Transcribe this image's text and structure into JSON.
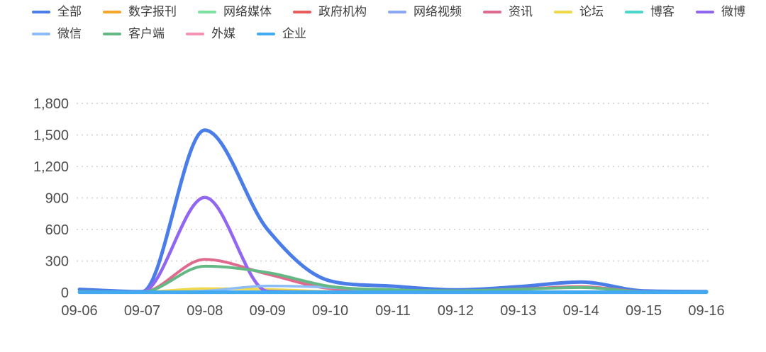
{
  "chart_data": {
    "type": "line",
    "title": "",
    "xlabel": "",
    "ylabel": "",
    "smooth": true,
    "grid": "dotted-horizontal",
    "legend_position": "top-left",
    "ylim": [
      0,
      1800
    ],
    "categories": [
      "09-06",
      "09-07",
      "09-08",
      "09-09",
      "09-10",
      "09-11",
      "09-12",
      "09-13",
      "09-14",
      "09-15",
      "09-16"
    ],
    "y_ticks": [
      {
        "value": 0,
        "label": "0"
      },
      {
        "value": 300,
        "label": "300"
      },
      {
        "value": 600,
        "label": "600"
      },
      {
        "value": 900,
        "label": "900"
      },
      {
        "value": 1200,
        "label": "1,200"
      },
      {
        "value": 1500,
        "label": "1,500"
      },
      {
        "value": 1800,
        "label": "1,800"
      }
    ],
    "series": [
      {
        "id": "all",
        "name": "全部",
        "color": "#4a7de8",
        "width": 5,
        "values": [
          30,
          8,
          1545,
          600,
          110,
          60,
          25,
          55,
          100,
          15,
          8
        ]
      },
      {
        "id": "digital-newspaper",
        "name": "数字报刊",
        "color": "#f5a62b",
        "width": 3,
        "values": [
          2,
          2,
          5,
          3,
          2,
          2,
          2,
          2,
          2,
          2,
          2
        ]
      },
      {
        "id": "online-media",
        "name": "网络媒体",
        "color": "#7ce0a0",
        "width": 3,
        "values": [
          3,
          2,
          8,
          5,
          3,
          2,
          2,
          2,
          3,
          2,
          2
        ]
      },
      {
        "id": "government",
        "name": "政府机构",
        "color": "#e85c5c",
        "width": 3,
        "values": [
          2,
          2,
          10,
          6,
          3,
          2,
          2,
          2,
          3,
          2,
          2
        ]
      },
      {
        "id": "online-video",
        "name": "网络视频",
        "color": "#8aa8f2",
        "width": 3,
        "values": [
          2,
          2,
          5,
          3,
          2,
          2,
          2,
          2,
          2,
          2,
          2
        ]
      },
      {
        "id": "news",
        "name": "资讯",
        "color": "#e06a8e",
        "width": 4,
        "values": [
          8,
          4,
          315,
          175,
          38,
          20,
          15,
          32,
          55,
          8,
          4
        ]
      },
      {
        "id": "forum",
        "name": "论坛",
        "color": "#f0d84a",
        "width": 3.5,
        "values": [
          2,
          5,
          38,
          30,
          10,
          3,
          2,
          2,
          5,
          2,
          2
        ]
      },
      {
        "id": "blog",
        "name": "博客",
        "color": "#4ad6c8",
        "width": 3,
        "values": [
          2,
          2,
          4,
          3,
          2,
          2,
          2,
          2,
          2,
          2,
          2
        ]
      },
      {
        "id": "weibo",
        "name": "微博",
        "color": "#9166f0",
        "width": 4.5,
        "values": [
          6,
          4,
          905,
          12,
          4,
          3,
          3,
          3,
          4,
          3,
          3
        ]
      },
      {
        "id": "wechat",
        "name": "微信",
        "color": "#8cbcf5",
        "width": 3.5,
        "values": [
          3,
          3,
          15,
          62,
          48,
          8,
          3,
          3,
          6,
          3,
          3
        ]
      },
      {
        "id": "app-client",
        "name": "客户端",
        "color": "#63b883",
        "width": 4,
        "values": [
          10,
          4,
          250,
          190,
          58,
          26,
          16,
          30,
          48,
          7,
          4
        ]
      },
      {
        "id": "foreign-media",
        "name": "外媒",
        "color": "#f591b2",
        "width": 3,
        "values": [
          2,
          2,
          4,
          3,
          2,
          2,
          2,
          2,
          2,
          2,
          2
        ]
      },
      {
        "id": "enterprise",
        "name": "企业",
        "color": "#41aaf0",
        "width": 5,
        "values": [
          3,
          3,
          3,
          3,
          3,
          3,
          3,
          3,
          3,
          3,
          3
        ]
      }
    ]
  },
  "legend": {
    "rows": [
      [
        0,
        1,
        2,
        3,
        4,
        5,
        6,
        7,
        8
      ],
      [
        9,
        10,
        11,
        12
      ]
    ]
  },
  "colors": {
    "axis_text": "#4d4d4d",
    "legend_text": "#3c3c3c",
    "gridline": "#d9d9d9",
    "background": "#ffffff"
  }
}
